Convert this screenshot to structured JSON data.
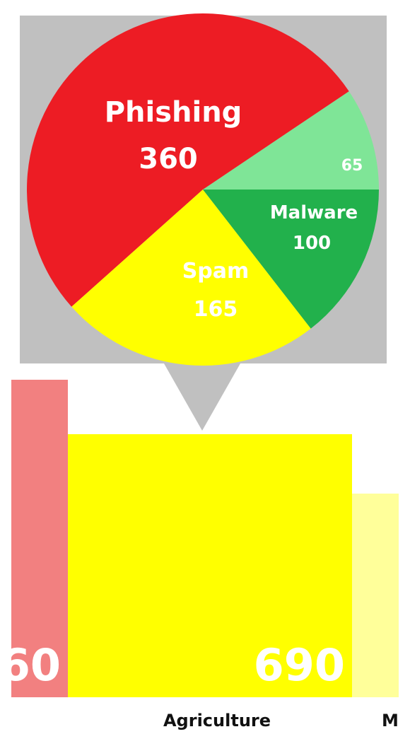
{
  "colors": {
    "tooltip_bg": "#c0c0c0",
    "label_text": "#ffffff",
    "category_text": "#111111",
    "bar_left": "#f28080",
    "bar_center": "#ffff00",
    "bar_right": "#ffff9a"
  },
  "chart_data": [
    {
      "type": "pie",
      "title": "",
      "slices": [
        {
          "label": "Phishing",
          "value": 360,
          "color": "#ed1c24"
        },
        {
          "label": "",
          "value": 65,
          "color": "#7fe597"
        },
        {
          "label": "Malware",
          "value": 100,
          "color": "#22b14c"
        },
        {
          "label": "Spam",
          "value": 165,
          "color": "#ffff00"
        }
      ],
      "total": 690
    },
    {
      "type": "bar",
      "title": "",
      "categories": [
        "",
        "Agriculture",
        "M"
      ],
      "values": [
        null,
        690,
        null
      ],
      "value_labels": [
        "60",
        "690",
        ""
      ],
      "xlabel": "",
      "ylabel": ""
    }
  ]
}
